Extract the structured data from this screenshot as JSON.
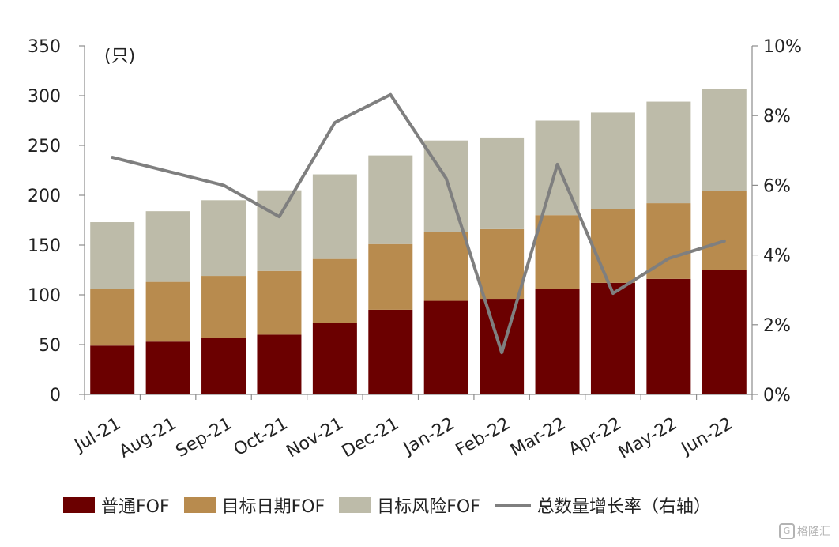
{
  "chart_data": {
    "type": "bar",
    "stacked": true,
    "categories": [
      "Jul-21",
      "Aug-21",
      "Sep-21",
      "Oct-21",
      "Nov-21",
      "Dec-21",
      "Jan-22",
      "Feb-22",
      "Mar-22",
      "Apr-22",
      "May-22",
      "Jun-22"
    ],
    "series": [
      {
        "name": "普通FOF",
        "type": "bar",
        "axis": "left",
        "color": "#6b0000",
        "values": [
          49,
          53,
          57,
          60,
          72,
          85,
          94,
          96,
          106,
          112,
          116,
          125
        ]
      },
      {
        "name": "目标日期FOF",
        "type": "bar",
        "axis": "left",
        "color": "#b88b4e",
        "values": [
          57,
          60,
          62,
          64,
          64,
          66,
          69,
          70,
          74,
          74,
          76,
          79
        ]
      },
      {
        "name": "目标风险FOF",
        "type": "bar",
        "axis": "left",
        "color": "#bdbba9",
        "values": [
          67,
          71,
          76,
          81,
          85,
          89,
          92,
          92,
          95,
          97,
          102,
          103
        ]
      },
      {
        "name": "总数量增长率（右轴）",
        "type": "line",
        "axis": "right",
        "color": "#7f7f7f",
        "values": [
          0.068,
          0.064,
          0.06,
          0.051,
          0.078,
          0.086,
          0.062,
          0.012,
          0.066,
          0.029,
          0.039,
          0.044
        ]
      }
    ],
    "yleft": {
      "ylim": [
        0,
        350
      ],
      "ticks": [
        0,
        50,
        100,
        150,
        200,
        250,
        300,
        350
      ],
      "unit_label": "(只)"
    },
    "yright": {
      "ylim": [
        0,
        0.1
      ],
      "ticks": [
        "0%",
        "2%",
        "4%",
        "6%",
        "8%",
        "10%"
      ]
    },
    "grid": false,
    "legend_position": "bottom"
  },
  "watermark": {
    "icon": "G",
    "text": "格隆汇"
  }
}
